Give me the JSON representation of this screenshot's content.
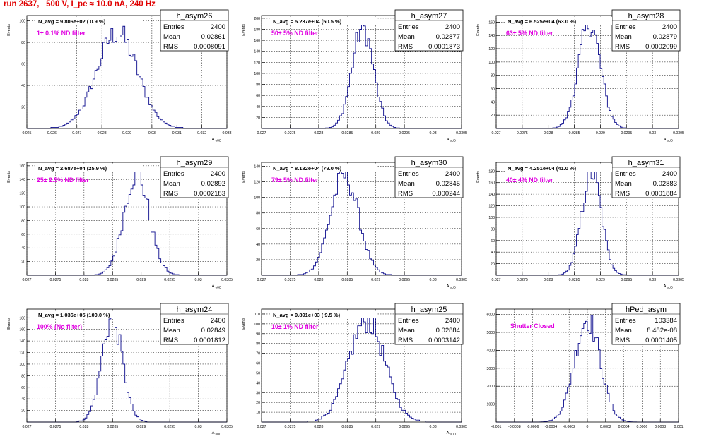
{
  "run_title": "run 2637,   500 V, I_pe ≈ 10.0 nA, 240 Hz",
  "colors": {
    "hist": "#0a0a8c",
    "note": "#e000e0",
    "title": "#e00000",
    "frame": "#000000",
    "grid": "#000000"
  },
  "chart_data": [
    {
      "type": "histogram",
      "name": "h_asym26",
      "entries": "2400",
      "mean": "0.02861",
      "rms": "0.0008091",
      "navg": "N_avg = 9.806e+02 ( 0.9 %)",
      "note": "1± 0.1% ND filter",
      "xlabel": "A uUD",
      "ylabel": "Events",
      "xlim": [
        0.025,
        0.033
      ],
      "ylim": [
        0,
        105
      ],
      "xticks": [
        0.025,
        0.026,
        0.027,
        0.028,
        0.029,
        0.03,
        0.031,
        0.032,
        0.033
      ],
      "xtick_labels": [
        "0.025",
        "0.026",
        "0.027",
        "0.028",
        "0.029",
        "0.03",
        "0.031",
        "0.032",
        "0.033"
      ],
      "yticks": [
        20,
        40,
        60,
        80,
        100
      ],
      "ytick_labels": [
        "20",
        "40",
        "60",
        "80",
        "100"
      ],
      "center": 0.02861,
      "sigma": 0.00081,
      "peak": 90
    },
    {
      "type": "histogram",
      "name": "h_asym27",
      "entries": "2400",
      "mean": "0.02877",
      "rms": "0.0001873",
      "navg": "N_avg = 5.237e+04 (50.5 %)",
      "note": "50± 5% ND filter",
      "xlabel": "A uUD",
      "ylabel": "Events",
      "xlim": [
        0.027,
        0.0305
      ],
      "ylim": [
        0,
        205
      ],
      "xticks": [
        0.027,
        0.0275,
        0.028,
        0.0285,
        0.029,
        0.0295,
        0.03,
        0.0305
      ],
      "xtick_labels": [
        "0.027",
        "0.0275",
        "0.028",
        "0.0285",
        "0.029",
        "0.0295",
        "0.03",
        "0.0305"
      ],
      "yticks": [
        20,
        40,
        60,
        80,
        100,
        120,
        140,
        160,
        180,
        200
      ],
      "ytick_labels": [
        "20",
        "40",
        "60",
        "80",
        "100",
        "120",
        "140",
        "160",
        "180",
        "200"
      ],
      "center": 0.02877,
      "sigma": 0.000187,
      "peak": 185
    },
    {
      "type": "histogram",
      "name": "h_asym28",
      "entries": "2400",
      "mean": "0.02879",
      "rms": "0.0002099",
      "navg": "N_avg = 6.525e+04 (63.0 %)",
      "note": "63± 5% ND filter",
      "xlabel": "A uUD",
      "ylabel": "Events",
      "xlim": [
        0.027,
        0.0305
      ],
      "ylim": [
        0,
        170
      ],
      "xticks": [
        0.027,
        0.0275,
        0.028,
        0.0285,
        0.029,
        0.0295,
        0.03,
        0.0305
      ],
      "xtick_labels": [
        "0.027",
        "0.0275",
        "0.028",
        "0.0285",
        "0.029",
        "0.0295",
        "0.03",
        "0.0305"
      ],
      "yticks": [
        20,
        40,
        60,
        80,
        100,
        120,
        140,
        160
      ],
      "ytick_labels": [
        "20",
        "40",
        "60",
        "80",
        "100",
        "120",
        "140",
        "160"
      ],
      "center": 0.02879,
      "sigma": 0.00021,
      "peak": 160
    },
    {
      "type": "histogram",
      "name": "h_asym29",
      "entries": "2400",
      "mean": "0.02892",
      "rms": "0.0002183",
      "navg": "N_avg = 2.687e+04 (25.9 %)",
      "note": "25± 2.5% ND filter",
      "xlabel": "A uUD",
      "ylabel": "Events",
      "xlim": [
        0.027,
        0.0305
      ],
      "ylim": [
        0,
        165
      ],
      "xticks": [
        0.027,
        0.0275,
        0.028,
        0.0285,
        0.029,
        0.0295,
        0.03,
        0.0305
      ],
      "xtick_labels": [
        "0.027",
        "0.0275",
        "0.028",
        "0.0285",
        "0.029",
        "0.0295",
        "0.03",
        "0.0305"
      ],
      "yticks": [
        20,
        40,
        60,
        80,
        100,
        120,
        140,
        160
      ],
      "ytick_labels": [
        "20",
        "40",
        "60",
        "80",
        "100",
        "120",
        "140",
        "160"
      ],
      "center": 0.02892,
      "sigma": 0.000218,
      "peak": 152
    },
    {
      "type": "histogram",
      "name": "h_asym30",
      "entries": "2400",
      "mean": "0.02845",
      "rms": "0.000244",
      "navg": "N_avg = 8.182e+04 (79.0 %)",
      "note": "79± 5% ND filter",
      "xlabel": "A uUD",
      "ylabel": "Events",
      "xlim": [
        0.027,
        0.0305
      ],
      "ylim": [
        0,
        145
      ],
      "xticks": [
        0.027,
        0.0275,
        0.028,
        0.0285,
        0.029,
        0.0295,
        0.03,
        0.0305
      ],
      "xtick_labels": [
        "0.027",
        "0.0275",
        "0.028",
        "0.0285",
        "0.029",
        "0.0295",
        "0.03",
        "0.0305"
      ],
      "yticks": [
        20,
        40,
        60,
        80,
        100,
        120,
        140
      ],
      "ytick_labels": [
        "20",
        "40",
        "60",
        "80",
        "100",
        "120",
        "140"
      ],
      "center": 0.02845,
      "sigma": 0.000244,
      "peak": 130
    },
    {
      "type": "histogram",
      "name": "h_asym31",
      "entries": "2400",
      "mean": "0.02883",
      "rms": "0.0001884",
      "navg": "N_avg = 4.251e+04 (41.0 %)",
      "note": "40± 4% ND filter",
      "xlabel": "A uUD",
      "ylabel": "Events",
      "xlim": [
        0.027,
        0.0305
      ],
      "ylim": [
        0,
        195
      ],
      "xticks": [
        0.027,
        0.0275,
        0.028,
        0.0285,
        0.029,
        0.0295,
        0.03,
        0.0305
      ],
      "xtick_labels": [
        "0.027",
        "0.0275",
        "0.028",
        "0.0285",
        "0.029",
        "0.0295",
        "0.03",
        "0.0305"
      ],
      "yticks": [
        20,
        40,
        60,
        80,
        100,
        120,
        140,
        160,
        180
      ],
      "ytick_labels": [
        "20",
        "40",
        "60",
        "80",
        "100",
        "120",
        "140",
        "160",
        "180"
      ],
      "center": 0.02883,
      "sigma": 0.000188,
      "peak": 180
    },
    {
      "type": "histogram",
      "name": "h_asym24",
      "entries": "2400",
      "mean": "0.02849",
      "rms": "0.0001812",
      "navg": "N_avg = 1.036e+05 (100.0 %)",
      "note": "100% (No filter)",
      "xlabel": "A uUD",
      "ylabel": "Events",
      "xlim": [
        0.027,
        0.0305
      ],
      "ylim": [
        0,
        195
      ],
      "xticks": [
        0.027,
        0.0275,
        0.028,
        0.0285,
        0.029,
        0.0295,
        0.03,
        0.0305
      ],
      "xtick_labels": [
        "0.027",
        "0.0275",
        "0.028",
        "0.0285",
        "0.029",
        "0.0295",
        "0.03",
        "0.0305"
      ],
      "yticks": [
        20,
        40,
        60,
        80,
        100,
        120,
        140,
        160,
        180
      ],
      "ytick_labels": [
        "20",
        "40",
        "60",
        "80",
        "100",
        "120",
        "140",
        "160",
        "180"
      ],
      "center": 0.02849,
      "sigma": 0.000181,
      "peak": 180
    },
    {
      "type": "histogram",
      "name": "h_asym25",
      "entries": "2400",
      "mean": "0.02884",
      "rms": "0.0003142",
      "navg": "N_avg = 9.891e+03 ( 9.5 %)",
      "note": "10± 1% ND filter",
      "xlabel": "A uUD",
      "ylabel": "Events",
      "xlim": [
        0.027,
        0.0305
      ],
      "ylim": [
        0,
        115
      ],
      "xticks": [
        0.027,
        0.0275,
        0.028,
        0.0285,
        0.029,
        0.0295,
        0.03,
        0.0305
      ],
      "xtick_labels": [
        "0.027",
        "0.0275",
        "0.028",
        "0.0285",
        "0.029",
        "0.0295",
        "0.03",
        "0.0305"
      ],
      "yticks": [
        10,
        20,
        30,
        40,
        50,
        60,
        70,
        80,
        90,
        100,
        110
      ],
      "ytick_labels": [
        "10",
        "20",
        "30",
        "40",
        "50",
        "60",
        "70",
        "80",
        "90",
        "100",
        "110"
      ],
      "center": 0.02884,
      "sigma": 0.000314,
      "peak": 105
    },
    {
      "type": "histogram",
      "name": "hPed_asym",
      "entries": "103384",
      "mean": "8.482e-08",
      "rms": "0.0001405",
      "navg": "",
      "note": "Shutter Closed",
      "xlabel": "",
      "ylabel": "",
      "xlim": [
        -0.001,
        0.001
      ],
      "ylim": [
        0,
        6300
      ],
      "xticks": [
        -0.001,
        -0.0008,
        -0.0006,
        -0.0004,
        -0.0002,
        0,
        0.0002,
        0.0004,
        0.0006,
        0.0008,
        0.001
      ],
      "xtick_labels": [
        "-0.001",
        "-0.0008",
        "-0.0006",
        "-0.0004",
        "-0.0002",
        "0",
        "0.0002",
        "0.0004",
        "0.0006",
        "0.0008",
        "0.001"
      ],
      "yticks": [
        1000,
        2000,
        3000,
        4000,
        5000,
        6000
      ],
      "ytick_labels": [
        "1000",
        "2000",
        "3000",
        "4000",
        "5000",
        "6000"
      ],
      "center": 0.0,
      "sigma": 0.00014,
      "peak": 5800
    }
  ]
}
